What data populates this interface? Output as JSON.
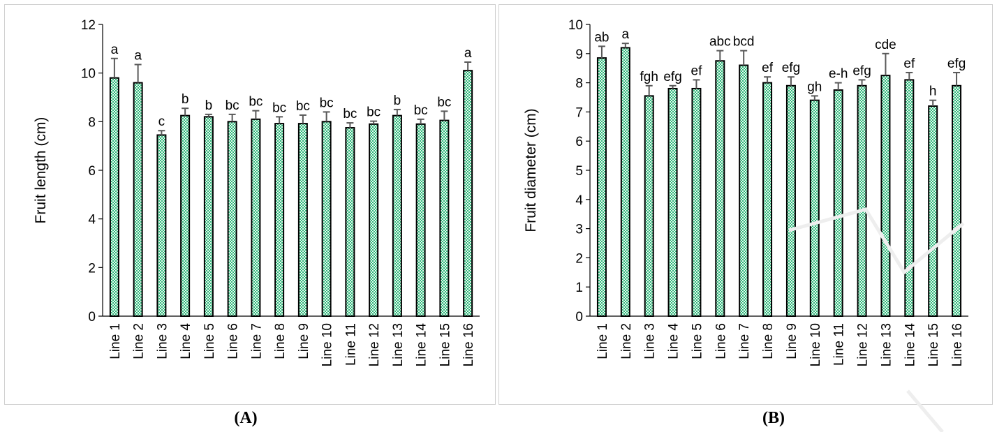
{
  "captions": {
    "a": "(A)",
    "b": "(B)"
  },
  "colors": {
    "bar_fill": "#2db87a",
    "bar_pattern_light": "#e8f7ef",
    "bar_outline": "#000000",
    "error_bar": "#595959",
    "axis": "#000000"
  },
  "chart_data": [
    {
      "type": "bar",
      "title": "",
      "xlabel": "",
      "ylabel": "Fruit length (cm)",
      "ylim": [
        0,
        12
      ],
      "yticks": [
        0,
        2,
        4,
        6,
        8,
        10,
        12
      ],
      "grid": false,
      "categories": [
        "Line 1",
        "Line 2",
        "Line 3",
        "Line 4",
        "Line 5",
        "Line 6",
        "Line 7",
        "Line 8",
        "Line 9",
        "Line 10",
        "Line 11",
        "Line 12",
        "Line 13",
        "Line 14",
        "Line 15",
        "Line 16"
      ],
      "values": [
        9.8,
        9.6,
        7.45,
        8.25,
        8.2,
        8.0,
        8.1,
        7.92,
        7.92,
        8.0,
        7.75,
        7.9,
        8.25,
        7.9,
        8.05,
        10.1
      ],
      "errors": [
        0.8,
        0.75,
        0.18,
        0.3,
        0.1,
        0.3,
        0.35,
        0.28,
        0.35,
        0.4,
        0.2,
        0.12,
        0.25,
        0.2,
        0.38,
        0.35
      ],
      "labels": [
        "a",
        "a",
        "c",
        "b",
        "b",
        "bc",
        "bc",
        "bc",
        "bc",
        "bc",
        "bc",
        "bc",
        "b",
        "bc",
        "bc",
        "a"
      ]
    },
    {
      "type": "bar",
      "title": "",
      "xlabel": "",
      "ylabel": "Fruit diameter (cm)",
      "ylim": [
        0,
        10
      ],
      "yticks": [
        0,
        1,
        2,
        3,
        4,
        5,
        6,
        7,
        8,
        9,
        10
      ],
      "grid": false,
      "categories": [
        "Line 1",
        "Line 2",
        "Line 3",
        "Line 4",
        "Line 5",
        "Line 6",
        "Line 7",
        "Line 8",
        "Line 9",
        "Line 10",
        "Line 11",
        "Line 12",
        "Line 13",
        "Line 14",
        "Line 15",
        "Line 16"
      ],
      "values": [
        8.85,
        9.2,
        7.55,
        7.8,
        7.8,
        8.75,
        8.6,
        8.0,
        7.9,
        7.4,
        7.75,
        7.9,
        8.25,
        8.1,
        7.2,
        7.9
      ],
      "errors": [
        0.4,
        0.15,
        0.35,
        0.1,
        0.3,
        0.35,
        0.5,
        0.2,
        0.3,
        0.15,
        0.25,
        0.2,
        0.75,
        0.25,
        0.2,
        0.45
      ],
      "labels": [
        "ab",
        "a",
        "fgh",
        "efg",
        "ef",
        "abc",
        "bcd",
        "ef",
        "efg",
        "gh",
        "e-h",
        "efg",
        "cde",
        "ef",
        "h",
        "efg"
      ]
    }
  ]
}
